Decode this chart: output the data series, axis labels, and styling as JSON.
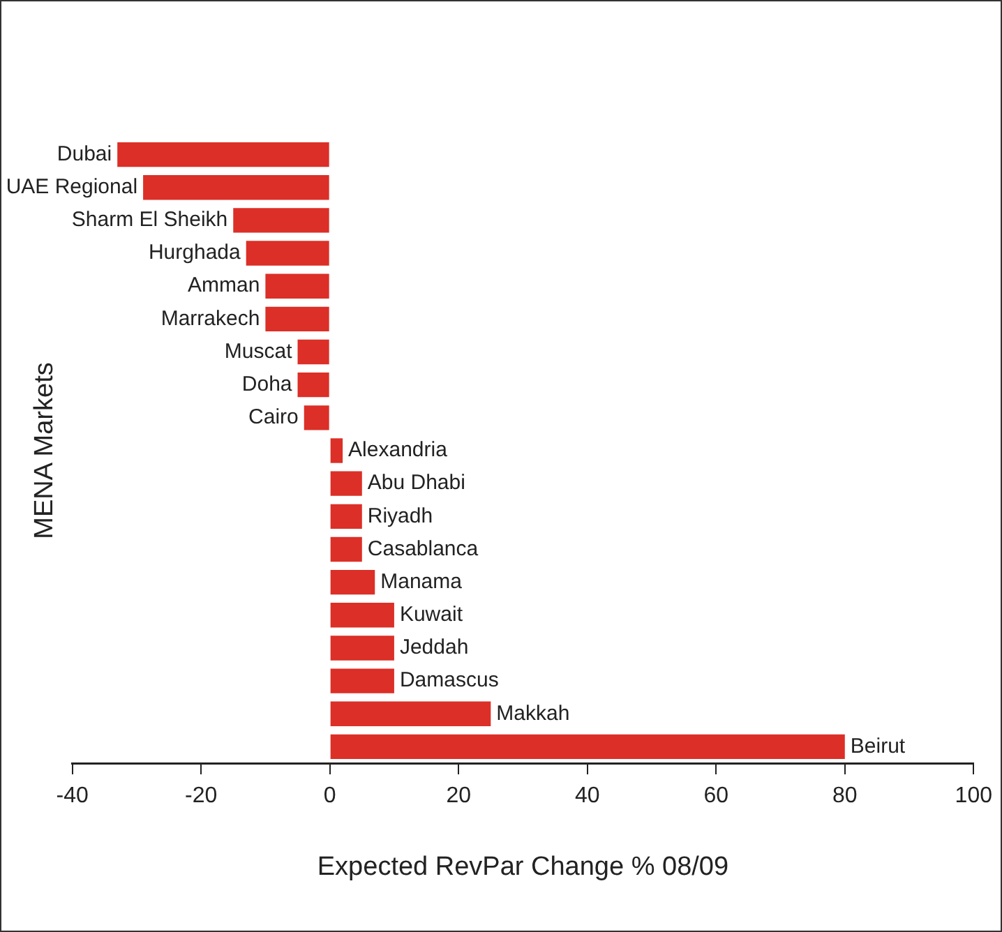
{
  "chart_data": {
    "type": "bar",
    "orientation": "horizontal",
    "xlabel": "Expected RevPar Change % 08/09",
    "ylabel": "MENA Markets",
    "categories": [
      "Dubai",
      "UAE Regional",
      "Sharm El Sheikh",
      "Hurghada",
      "Amman",
      "Marrakech",
      "Muscat",
      "Doha",
      "Cairo",
      "Alexandria",
      "Abu Dhabi",
      "Riyadh",
      "Casablanca",
      "Manama",
      "Kuwait",
      "Jeddah",
      "Damascus",
      "Makkah",
      "Beirut"
    ],
    "values": [
      -33,
      -29,
      -15,
      -13,
      -10,
      -10,
      -5,
      -5,
      -4,
      2,
      5,
      5,
      5,
      7,
      10,
      10,
      10,
      25,
      80
    ],
    "color": "#dc2f27",
    "xlim": [
      -40,
      100
    ],
    "xticks": [
      -40,
      -20,
      0,
      20,
      40,
      60,
      80,
      100
    ],
    "grid": false,
    "legend": false
  }
}
